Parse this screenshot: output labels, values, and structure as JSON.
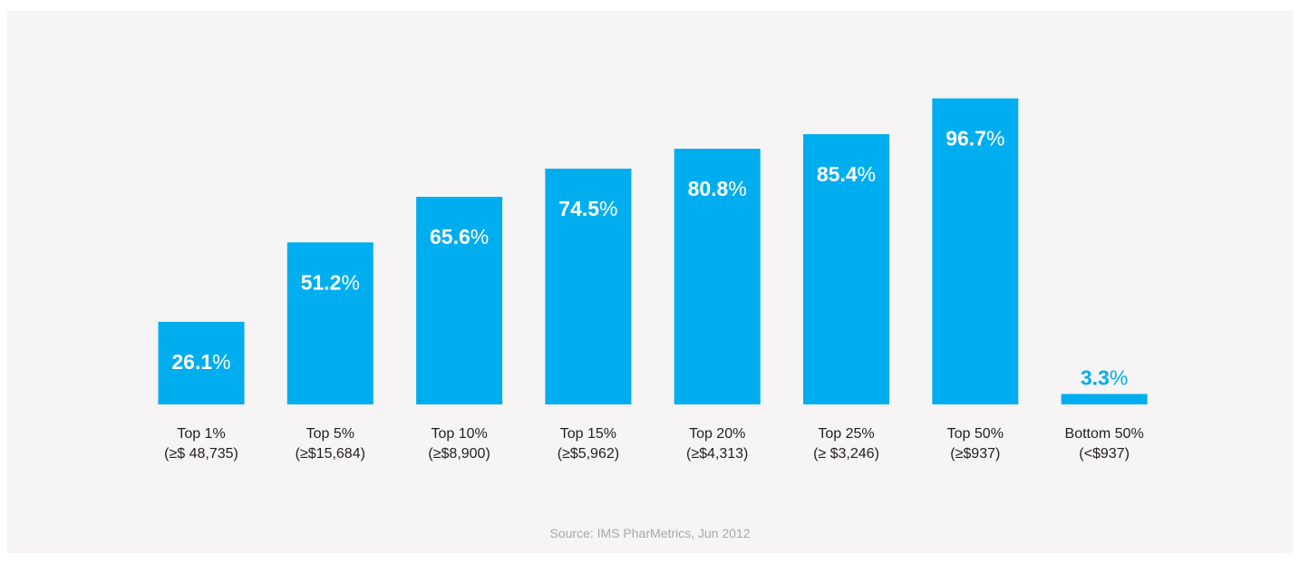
{
  "chart_data": {
    "type": "bar",
    "categories": [
      "Top 1%",
      "Top 5%",
      "Top 10%",
      "Top 15%",
      "Top 20%",
      "Top 25%",
      "Top 50%",
      "Bottom 50%"
    ],
    "sublabels": [
      "(≥$ 48,735)",
      "(≥$15,684)",
      "(≥$8,900)",
      "(≥$5,962)",
      "(≥$4,313)",
      "(≥ $3,246)",
      "(≥$937)",
      "(<$937)"
    ],
    "values": [
      26.1,
      51.2,
      65.6,
      74.5,
      80.8,
      85.4,
      96.7,
      3.3
    ],
    "value_labels": [
      "26.1",
      "51.2",
      "65.6",
      "74.5",
      "80.8",
      "85.4",
      "96.7",
      "3.3"
    ],
    "value_suffix": "%",
    "ylim": [
      0,
      100
    ],
    "grid": false,
    "legend": "none"
  },
  "source": "Source: IMS PharMetrics, Jun 2012",
  "colors": {
    "bar": "#00aeef",
    "label_on_bar": "#ffffff",
    "label_above_bar": "#00aeef",
    "axis_text": "#231f20",
    "background": "#f6f4f4"
  }
}
